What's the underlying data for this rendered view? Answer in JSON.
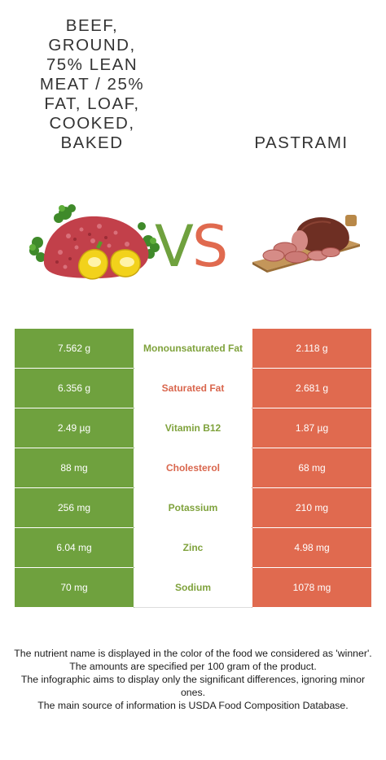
{
  "left_food": {
    "title": "Beef, ground, 75% lean meat / 25% fat, loaf, cooked, baked",
    "title_lines": "BEEF,\nGROUND,\n75% LEAN\nMEAT / 25%\nFAT, LOAF,\nCOOKED,\nBAKED",
    "color": "#6fa13e"
  },
  "right_food": {
    "title": "PASTRAMI",
    "color": "#e06a4f"
  },
  "vs": {
    "v": "V",
    "s": "S"
  },
  "rows": [
    {
      "left": "7.562 g",
      "nutrient": "Monounsaturated Fat",
      "right": "2.118 g",
      "winner": "left"
    },
    {
      "left": "6.356 g",
      "nutrient": "Saturated Fat",
      "right": "2.681 g",
      "winner": "right"
    },
    {
      "left": "2.49 µg",
      "nutrient": "Vitamin B12",
      "right": "1.87 µg",
      "winner": "left"
    },
    {
      "left": "88 mg",
      "nutrient": "Cholesterol",
      "right": "68 mg",
      "winner": "right"
    },
    {
      "left": "256 mg",
      "nutrient": "Potassium",
      "right": "210 mg",
      "winner": "left"
    },
    {
      "left": "6.04 mg",
      "nutrient": "Zinc",
      "right": "4.98 mg",
      "winner": "left"
    },
    {
      "left": "70 mg",
      "nutrient": "Sodium",
      "right": "1078 mg",
      "winner": "left"
    }
  ],
  "footer": [
    "The nutrient name is displayed in the color of the food we considered as 'winner'.",
    "The amounts are specified per 100 gram of the product.",
    "The infographic aims to display only the significant differences, ignoring minor ones.",
    "The main source of information is USDA Food Composition Database."
  ]
}
